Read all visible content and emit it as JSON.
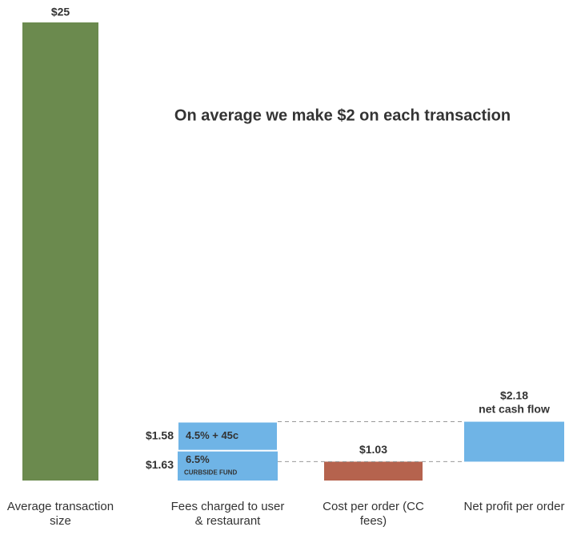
{
  "chart_data": {
    "type": "waterfall",
    "title": "On average we make $2 on each transaction",
    "categories": [
      "Average transaction size",
      "Fees charged to user & restaurant",
      "Cost per order (CC fees)",
      "Net profit per order"
    ],
    "values": [
      25,
      null,
      1.03,
      2.18
    ],
    "value_labels": [
      "$25",
      null,
      "$1.03",
      "$2.18"
    ],
    "colors": [
      "#6b8a4e",
      "#6fb4e6",
      "#b5634e",
      "#6fb4e6"
    ],
    "fee_segments": [
      {
        "value": 1.63,
        "value_label": "$1.63",
        "text": "6.5%",
        "subtext": "CURBSIDE FUND"
      },
      {
        "value": 1.58,
        "value_label": "$1.58",
        "text": "4.5% + 45c"
      }
    ],
    "net_note": "net cash flow",
    "ylim": [
      0,
      25
    ]
  }
}
